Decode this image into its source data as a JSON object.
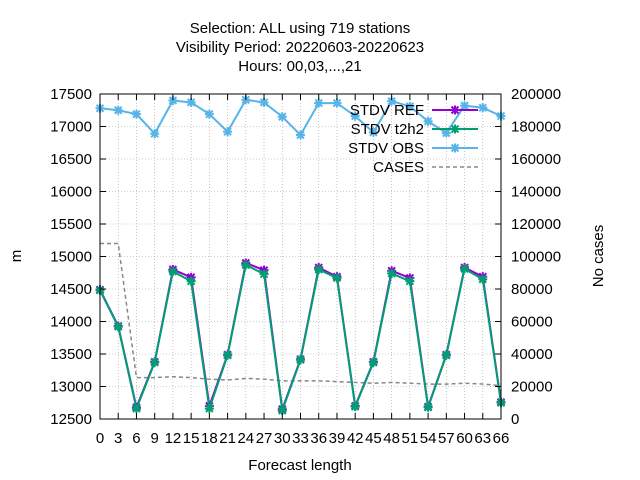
{
  "chart_data": {
    "type": "line",
    "title_lines": [
      "Selection: ALL using   719 stations",
      "Visibility   Period: 20220603-20220623",
      "Hours:  00,03,...,21"
    ],
    "xlabel": "Forecast length",
    "ylabel": "m",
    "y2label": "No cases",
    "x_ticks": [
      0,
      3,
      6,
      9,
      12,
      15,
      18,
      21,
      24,
      27,
      30,
      33,
      36,
      39,
      42,
      45,
      48,
      51,
      54,
      57,
      60,
      63,
      66
    ],
    "ylim": [
      12500,
      17500
    ],
    "y_ticks": [
      12500,
      13000,
      13500,
      14000,
      14500,
      15000,
      15500,
      16000,
      16500,
      17000,
      17500
    ],
    "y2lim": [
      0,
      200000
    ],
    "y2_ticks": [
      0,
      20000,
      40000,
      60000,
      80000,
      100000,
      120000,
      140000,
      160000,
      180000,
      200000
    ],
    "x": [
      0,
      3,
      6,
      9,
      12,
      15,
      18,
      21,
      24,
      27,
      30,
      33,
      36,
      39,
      42,
      45,
      48,
      51,
      54,
      57,
      60,
      63,
      66
    ],
    "series": [
      {
        "name": "STDV REF",
        "color": "#9400d3",
        "marker": "x",
        "axis": "y",
        "values": [
          14490,
          13930,
          12680,
          13380,
          14800,
          14680,
          12700,
          13490,
          14900,
          14790,
          12650,
          13420,
          14830,
          14690,
          12700,
          13380,
          14780,
          14670,
          12690,
          13490,
          14830,
          14690,
          12760
        ]
      },
      {
        "name": "STDV t2h2",
        "color": "#009e73",
        "marker": "x",
        "axis": "y",
        "values": [
          14480,
          13920,
          12660,
          13370,
          14770,
          14620,
          12660,
          13480,
          14870,
          14730,
          12630,
          13410,
          14800,
          14670,
          12690,
          13370,
          14740,
          14620,
          12680,
          13480,
          14810,
          14650,
          12750
        ]
      },
      {
        "name": "STDV OBS",
        "color": "#56b4e9",
        "marker": "x",
        "axis": "y",
        "values": [
          17280,
          17250,
          17190,
          16890,
          17400,
          17370,
          17190,
          16920,
          17410,
          17370,
          17150,
          16870,
          17360,
          17360,
          17160,
          16910,
          17390,
          17310,
          17080,
          16900,
          17320,
          17290,
          17160
        ]
      },
      {
        "name": "CASES",
        "color": "#888888",
        "marker": "none",
        "dash": true,
        "axis": "y2",
        "values": [
          108000,
          108000,
          25500,
          25500,
          26000,
          25500,
          24500,
          24000,
          25000,
          24500,
          23500,
          23500,
          23500,
          23000,
          22500,
          22000,
          22500,
          22000,
          21500,
          21500,
          22000,
          21500,
          20500
        ]
      }
    ],
    "legend_position": "top-right",
    "grid": true
  }
}
